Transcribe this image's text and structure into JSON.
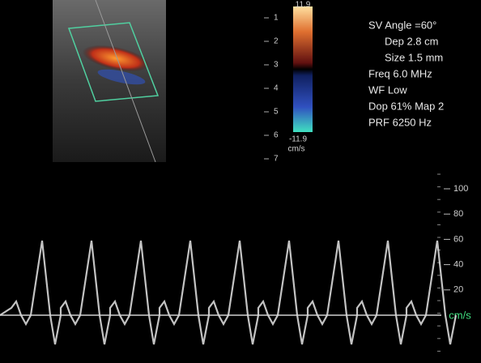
{
  "info": {
    "lines": [
      "SV Angle =60°",
      "Dep 2.8  cm",
      "Size 1.5  mm",
      "Freq 6.0  MHz",
      "WF Low",
      "Dop 61%  Map 2",
      "PRF 6250  Hz"
    ]
  },
  "color_bar": {
    "max": "11.9",
    "min": "-11.9",
    "unit": "cm/s"
  },
  "depth_scale": {
    "labels": [
      "1",
      "2",
      "3",
      "4",
      "5",
      "6",
      "7"
    ]
  },
  "spectral_scale": {
    "ticks": [
      100,
      80,
      60,
      40,
      20
    ],
    "unit": "cm/s"
  }
}
